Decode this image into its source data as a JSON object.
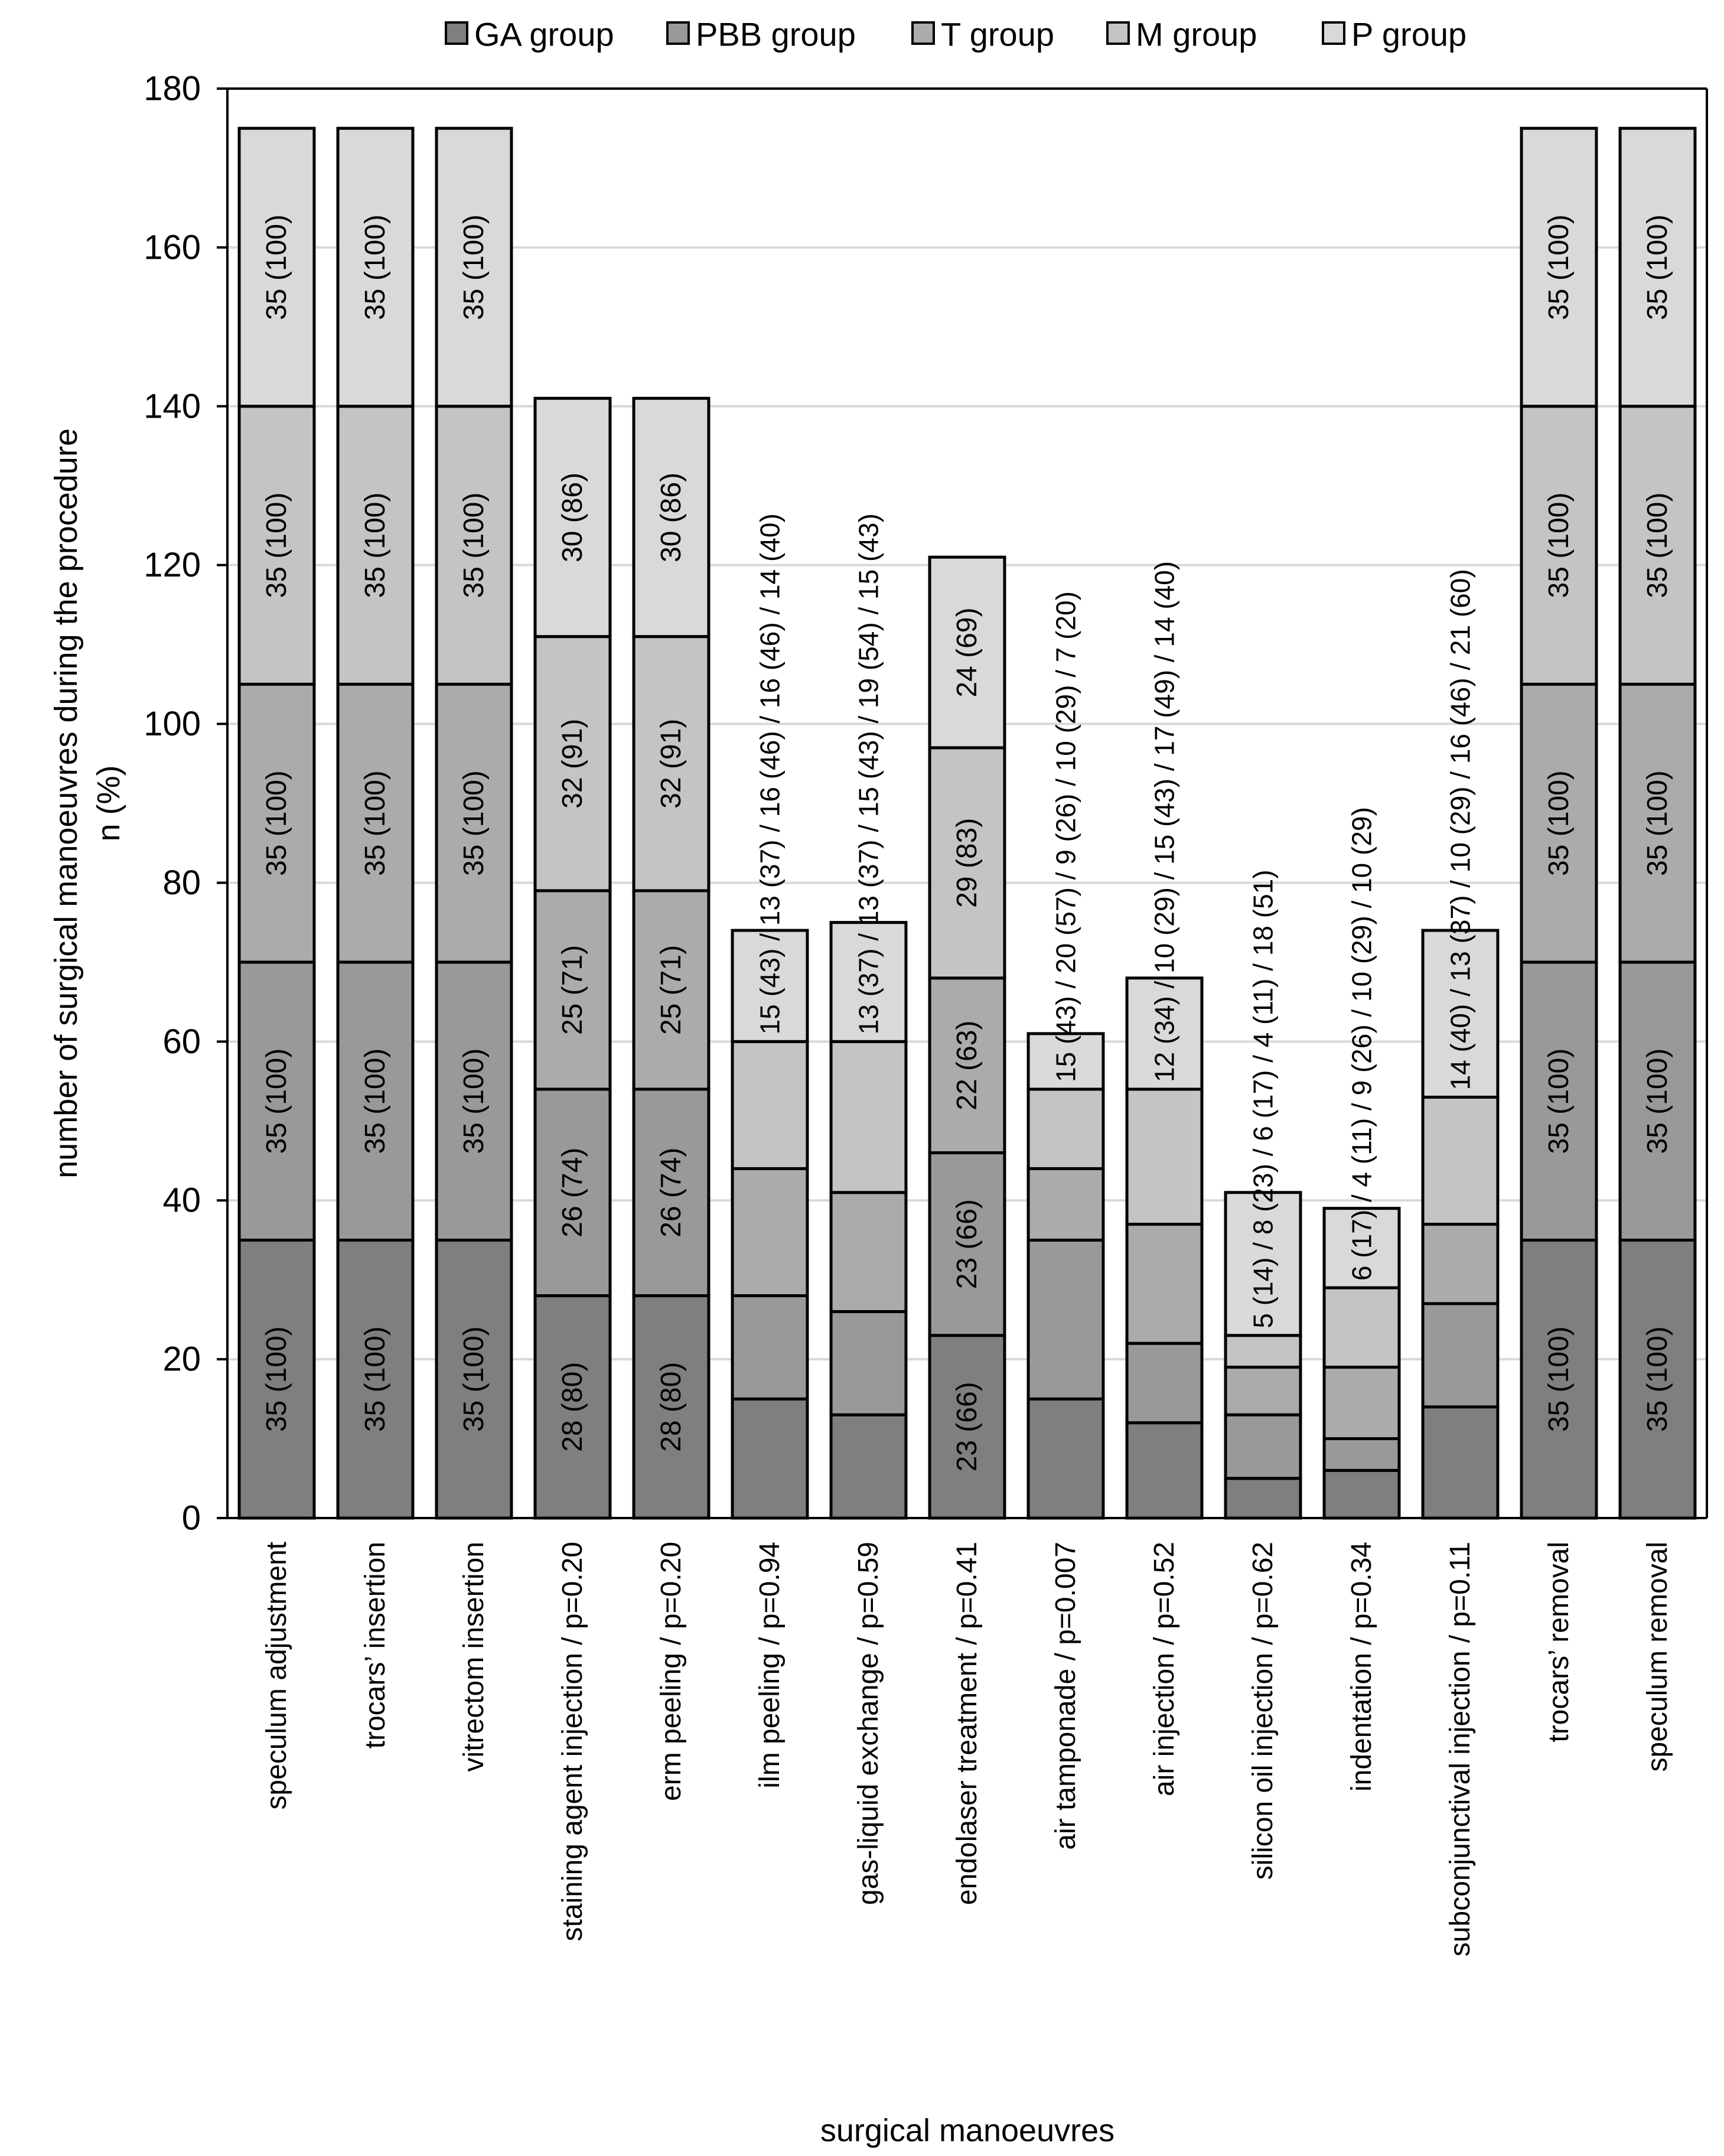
{
  "chart_data": {
    "type": "bar",
    "stacked": true,
    "title": "",
    "xlabel": "surgical manoeuvres",
    "ylabel": [
      "number of surgical manoeuvres during the procedure",
      "n (%)"
    ],
    "ylim": [
      0,
      180
    ],
    "yticks": [
      0,
      20,
      40,
      60,
      80,
      100,
      120,
      140,
      160,
      180
    ],
    "grid": true,
    "legend_position": "top",
    "categories": [
      "speculum adjustment",
      "trocars’ insertion",
      "vitrectom insertion",
      "staining agent injection / p=0.20",
      "erm peeling / p=0.20",
      "ilm peeling / p=0.94",
      "gas-liquid exchange / p=0.59",
      "endolaser treatment / p=0.41",
      "air tamponade / p=0.007",
      "air injection / p=0.52",
      "silicon oil injection / p=0.62",
      "indentation / p=0.34",
      "subconjunctival injection / p=0.11",
      "trocars’ removal",
      "speculum removal"
    ],
    "series": [
      {
        "name": "GA group",
        "color": "#7f7f7f",
        "values": [
          35,
          35,
          35,
          28,
          28,
          15,
          13,
          23,
          15,
          12,
          5,
          6,
          14,
          35,
          35
        ],
        "labels": [
          "35 (100)",
          "35 (100)",
          "35 (100)",
          "28 (80)",
          "28 (80)",
          "",
          "",
          "23 (66)",
          "",
          "",
          "",
          "",
          "",
          "35 (100)",
          "35 (100)"
        ]
      },
      {
        "name": "PBB group",
        "color": "#999999",
        "values": [
          35,
          35,
          35,
          26,
          26,
          13,
          13,
          23,
          20,
          10,
          8,
          4,
          13,
          35,
          35
        ],
        "labels": [
          "35 (100)",
          "35 (100)",
          "35 (100)",
          "26 (74)",
          "26 (74)",
          "",
          "",
          "23 (66)",
          "",
          "",
          "",
          "",
          "",
          "35 (100)",
          "35 (100)"
        ]
      },
      {
        "name": "T group",
        "color": "#ababab",
        "values": [
          35,
          35,
          35,
          25,
          25,
          16,
          15,
          22,
          9,
          15,
          6,
          9,
          10,
          35,
          35
        ],
        "labels": [
          "35 (100)",
          "35 (100)",
          "35 (100)",
          "25 (71)",
          "25 (71)",
          "",
          "",
          "22 (63)",
          "",
          "",
          "",
          "",
          "",
          "35 (100)",
          "35 (100)"
        ]
      },
      {
        "name": "M group",
        "color": "#c4c4c4",
        "values": [
          35,
          35,
          35,
          32,
          32,
          16,
          19,
          29,
          10,
          17,
          4,
          10,
          16,
          35,
          35
        ],
        "labels": [
          "35 (100)",
          "35 (100)",
          "35 (100)",
          "32 (91)",
          "32 (91)",
          "",
          "",
          "29 (83)",
          "",
          "",
          "",
          "",
          "",
          "35 (100)",
          "35 (100)"
        ]
      },
      {
        "name": "P group",
        "color": "#d9d9d9",
        "values": [
          35,
          35,
          35,
          30,
          30,
          14,
          15,
          24,
          7,
          14,
          18,
          10,
          21,
          35,
          35
        ],
        "labels": [
          "35 (100)",
          "35 (100)",
          "35 (100)",
          "30 (86)",
          "30 (86)",
          "",
          "",
          "24 (69)",
          "",
          "",
          "",
          "",
          "",
          "35 (100)",
          "35 (100)"
        ]
      }
    ],
    "bar_annotations": [
      "",
      "",
      "",
      "",
      "",
      "15 (43) / 13 (37) / 16 (46) / 16 (46) / 14 (40)",
      "13 (37) / 13 (37) / 15 (43) / 19 (54) / 15 (43)",
      "",
      "15 (43) / 20 (57) / 9 (26) / 10 (29) / 7 (20)",
      "12 (34) / 10 (29) / 15 (43) / 17 (49) / 14 (40)",
      "5 (14) / 8 (23) / 6 (17) / 4 (11) / 18 (51)",
      "6 (17) / 4 (11) / 9 (26) / 10 (29) / 10 (29)",
      "14 (40) / 13 (37) / 10 (29) / 16 (46) / 21 (60)",
      "",
      ""
    ]
  }
}
